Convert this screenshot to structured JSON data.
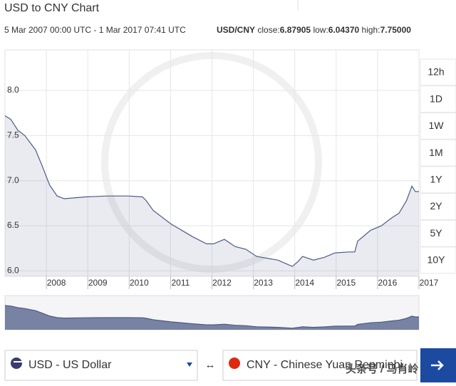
{
  "header": {
    "title": "USD to CNY Chart",
    "range": "5 Mar 2007 00:00 UTC - 1 Mar 2017 07:41 UTC",
    "pair": "USD/CNY",
    "stats": [
      {
        "label": "close:",
        "value": "6.87905"
      },
      {
        "label": "low:",
        "value": "6.04370"
      },
      {
        "label": "high:",
        "value": "7.75000"
      }
    ]
  },
  "chart_data": {
    "type": "area",
    "x": [
      2007.0,
      2007.14,
      2007.31,
      2007.48,
      2007.74,
      2007.91,
      2008.08,
      2008.26,
      2008.43,
      2008.94,
      2009.46,
      2009.98,
      2010.32,
      2010.41,
      2010.58,
      2011.01,
      2011.53,
      2011.87,
      2012.04,
      2012.3,
      2012.56,
      2012.82,
      2013.08,
      2013.59,
      2013.94,
      2014.07,
      2014.19,
      2014.45,
      2014.71,
      2014.97,
      2015.31,
      2015.45,
      2015.52,
      2015.83,
      2016.09,
      2016.35,
      2016.52,
      2016.7,
      2016.83,
      2016.91,
      2017.0
    ],
    "values": [
      7.72,
      7.68,
      7.56,
      7.5,
      7.34,
      7.15,
      6.95,
      6.83,
      6.8,
      6.82,
      6.83,
      6.83,
      6.82,
      6.78,
      6.67,
      6.52,
      6.38,
      6.3,
      6.3,
      6.35,
      6.27,
      6.24,
      6.16,
      6.12,
      6.05,
      6.1,
      6.16,
      6.12,
      6.15,
      6.2,
      6.21,
      6.21,
      6.33,
      6.45,
      6.5,
      6.59,
      6.64,
      6.78,
      6.94,
      6.88,
      6.879
    ],
    "color": "#4d5b86",
    "xlim": [
      2007,
      2017
    ],
    "xticks": [
      2008,
      2009,
      2010,
      2011,
      2012,
      2013,
      2014,
      2015,
      2016,
      2017
    ],
    "ylim": [
      5.94,
      8.45
    ],
    "yticks": [
      {
        "value": 6,
        "label": "6.0"
      },
      {
        "value": 6.5,
        "label": "6.5"
      },
      {
        "value": 7,
        "label": "7.0"
      },
      {
        "value": 7.5,
        "label": "7.5"
      },
      {
        "value": 8,
        "label": "8.0"
      }
    ],
    "grid": true
  },
  "periods": [
    "12h",
    "1D",
    "1W",
    "1M",
    "1Y",
    "2Y",
    "5Y",
    "10Y"
  ],
  "from_currency": "USD - US Dollar",
  "swap": "↔",
  "to_currency": "CNY - Chinese Yuan Renminbi",
  "watermark": "头条号 / 马肖岭"
}
